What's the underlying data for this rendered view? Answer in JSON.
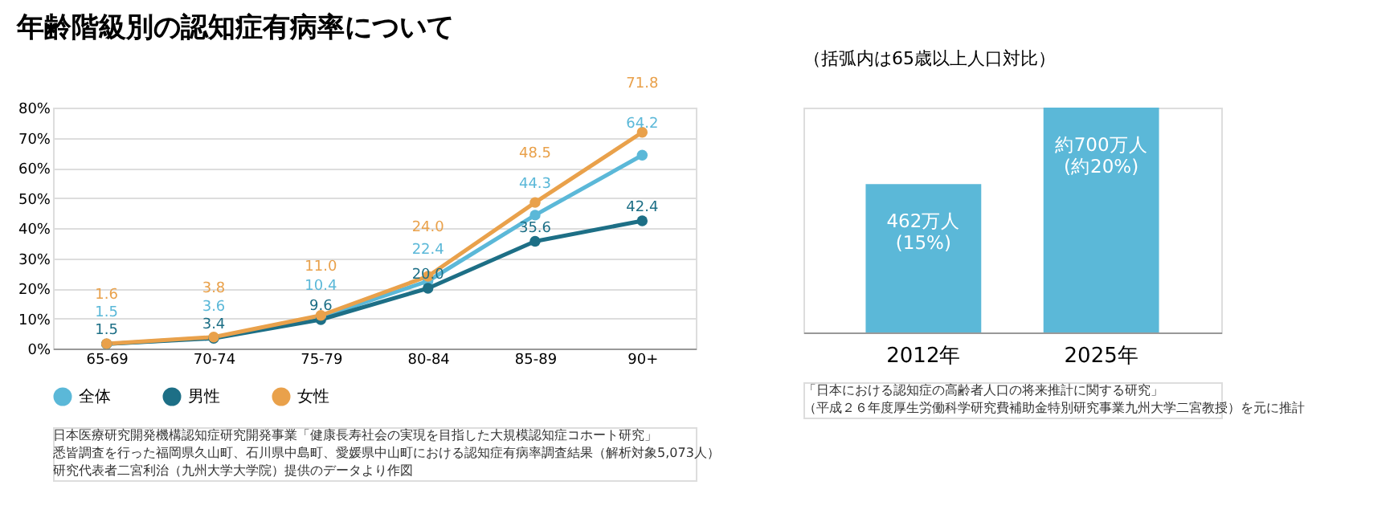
{
  "chart_data": [
    {
      "type": "line",
      "title": "年齢階級別の認知症有病率について",
      "categories": [
        "65-69",
        "70-74",
        "75-79",
        "80-84",
        "85-89",
        "90+"
      ],
      "series": [
        {
          "name": "全体",
          "color": "#5bb8d8",
          "values": [
            1.5,
            3.6,
            10.4,
            22.4,
            44.3,
            64.2
          ],
          "value_labels": [
            "1.5",
            "3.6",
            "10.4",
            "22.4",
            "44.3",
            "64.2"
          ]
        },
        {
          "name": "男性",
          "color": "#1d6f86",
          "values": [
            1.5,
            3.4,
            9.6,
            20.0,
            35.6,
            42.4
          ],
          "value_labels": [
            "1.5",
            "3.4",
            "9.6",
            "20.0",
            "35.6",
            "42.4"
          ]
        },
        {
          "name": "女性",
          "color": "#e9a14b",
          "values": [
            1.6,
            3.8,
            11.0,
            24.0,
            48.5,
            71.8
          ],
          "value_labels": [
            "1.6",
            "3.8",
            "11.0",
            "24.0",
            "48.5",
            "71.8"
          ]
        }
      ],
      "ylim": [
        0,
        80
      ],
      "yticks": [
        {
          "value": 0,
          "label": "0%"
        },
        {
          "value": 10,
          "label": "10%"
        },
        {
          "value": 20,
          "label": "20%"
        },
        {
          "value": 30,
          "label": "30%"
        },
        {
          "value": 40,
          "label": "40%"
        },
        {
          "value": 50,
          "label": "50%"
        },
        {
          "value": 60,
          "label": "60%"
        },
        {
          "value": 70,
          "label": "70%"
        },
        {
          "value": 80,
          "label": "80%"
        }
      ],
      "grid": "y",
      "legend": "bottom",
      "marker": "circle",
      "annotations": [
        "日本医療研究開発機構認知症研究開発事業「健康長寿社会の実現を目指した大規模認知症コホート研究」",
        "悉皆調査を行った福岡県久山町、石川県中島町、愛媛県中山町における認知症有病率調査結果（解析対象5,073人）",
        "研究代表者二宮利治（九州大学大学院）提供のデータより作図"
      ]
    },
    {
      "type": "bar",
      "title": "（括弧内は65歳以上人口対比）",
      "categories": [
        "2012年",
        "2025年"
      ],
      "values": [
        462,
        700
      ],
      "color": "#5bb8d8",
      "value_labels": [
        "462万人\n(15%)",
        "約700万人\n(約20%)"
      ],
      "annotations": [
        "「日本における認知症の高齢者人口の将来推計に関する研究」",
        "（平成２６年度厚生労働科学研究費補助金特別研究事業九州大学二宮教授）を元に推計"
      ]
    }
  ]
}
